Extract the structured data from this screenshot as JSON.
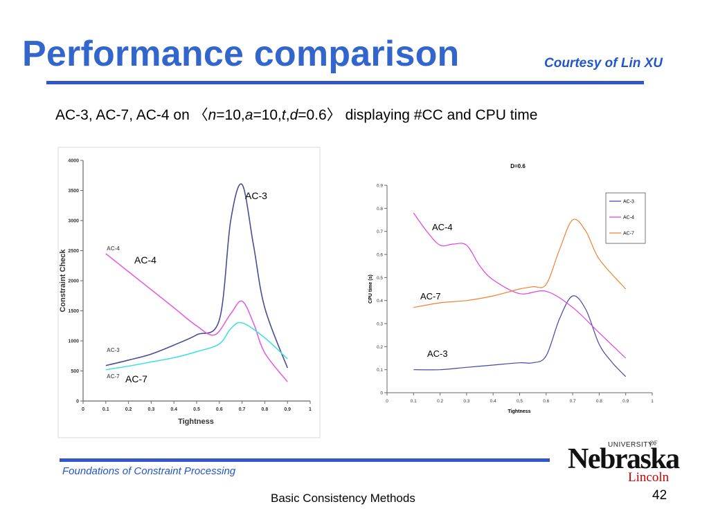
{
  "slide": {
    "title": "Performance comparison",
    "courtesy": "Courtesy of Lin XU",
    "subtitle": {
      "prefix": "AC-3, AC-7, AC-4 on ",
      "open": "〈",
      "n": "n",
      "n_val": "=10,",
      "a": "a",
      "a_val": "=10,",
      "t": "t",
      "comma": ",",
      "d": "d",
      "d_val": "=0.6",
      "close": "〉",
      "suffix": " displaying #CC and CPU time"
    },
    "footer_left": "Foundations of Constraint Processing",
    "footer_center": "Basic Consistency Methods",
    "page_number": "42",
    "logo": {
      "university": "UNIVERSITY",
      "of": "OF",
      "name": "Nebraska",
      "campus": "Lincoln"
    }
  },
  "chart_data": [
    {
      "type": "line",
      "title": "",
      "xlabel": "Tightness",
      "ylabel": "Constraint Check",
      "xlim": [
        0,
        1
      ],
      "ylim": [
        0,
        4000
      ],
      "xticks": [
        0,
        0.1,
        0.2,
        0.3,
        0.4,
        0.5,
        0.6,
        0.7,
        0.8,
        0.9,
        1
      ],
      "xtick_labels": [
        "0",
        "0.1",
        "0.2",
        "0.3",
        "0.4",
        "0.5",
        "0.6",
        "0.7",
        "0.8",
        "0.9",
        "1"
      ],
      "yticks": [
        0,
        500,
        1000,
        1500,
        2000,
        2500,
        3000,
        3500,
        4000
      ],
      "ytick_labels": [
        "0",
        "500",
        "1000",
        "1500",
        "2000",
        "2500",
        "3000",
        "3500",
        "4000"
      ],
      "grid": false,
      "legend": "inline labels at left end of series",
      "series": [
        {
          "name": "AC-3",
          "color": "#4b4b96",
          "x": [
            0.1,
            0.2,
            0.3,
            0.4,
            0.5,
            0.6,
            0.65,
            0.7,
            0.75,
            0.8,
            0.9
          ],
          "y": [
            590,
            680,
            780,
            930,
            1100,
            1350,
            3000,
            3600,
            2600,
            1550,
            550
          ]
        },
        {
          "name": "AC-4",
          "color": "#e060e0",
          "x": [
            0.1,
            0.2,
            0.3,
            0.4,
            0.5,
            0.58,
            0.65,
            0.7,
            0.75,
            0.8,
            0.9
          ],
          "y": [
            2450,
            2150,
            1850,
            1550,
            1250,
            1100,
            1450,
            1660,
            1300,
            800,
            320
          ]
        },
        {
          "name": "AC-7",
          "color": "#44e0e0",
          "x": [
            0.1,
            0.2,
            0.3,
            0.4,
            0.5,
            0.6,
            0.65,
            0.7,
            0.8,
            0.9
          ],
          "y": [
            520,
            580,
            650,
            720,
            820,
            950,
            1200,
            1300,
            1050,
            700
          ]
        }
      ],
      "annotations": [
        "AC-3",
        "AC-4",
        "AC-7"
      ],
      "legend_entries": [
        "AC-4",
        "AC-3",
        "AC-7"
      ]
    },
    {
      "type": "line",
      "title": "D=0.6",
      "xlabel": "Tightness",
      "ylabel": "CPU time (s)",
      "xlim": [
        0,
        1
      ],
      "ylim": [
        0,
        0.9
      ],
      "xticks": [
        0,
        0.1,
        0.2,
        0.3,
        0.4,
        0.5,
        0.6,
        0.7,
        0.8,
        0.9,
        1
      ],
      "xtick_labels": [
        "0",
        "0.1",
        "0.2",
        "0.3",
        "0.4",
        "0.5",
        "0.6",
        "0.7",
        "0.8",
        "0.9",
        "1"
      ],
      "yticks": [
        0,
        0.1,
        0.2,
        0.3,
        0.4,
        0.5,
        0.6,
        0.7,
        0.8,
        0.9
      ],
      "ytick_labels": [
        "0",
        "0.1",
        "0.2",
        "0.3",
        "0.4",
        "0.5",
        "0.6",
        "0.7",
        "0.8",
        "0.9"
      ],
      "grid": false,
      "legend": "top-right",
      "series": [
        {
          "name": "AC-3",
          "color": "#4444aa",
          "x": [
            0.1,
            0.2,
            0.3,
            0.4,
            0.5,
            0.55,
            0.6,
            0.65,
            0.7,
            0.75,
            0.8,
            0.85,
            0.9
          ],
          "y": [
            0.1,
            0.1,
            0.11,
            0.12,
            0.13,
            0.13,
            0.16,
            0.32,
            0.42,
            0.36,
            0.21,
            0.13,
            0.07
          ]
        },
        {
          "name": "AC-4",
          "color": "#e040e0",
          "x": [
            0.1,
            0.15,
            0.2,
            0.25,
            0.3,
            0.35,
            0.4,
            0.5,
            0.6,
            0.7,
            0.8,
            0.9
          ],
          "y": [
            0.78,
            0.7,
            0.64,
            0.645,
            0.64,
            0.55,
            0.49,
            0.43,
            0.44,
            0.37,
            0.26,
            0.15
          ]
        },
        {
          "name": "AC-7",
          "color": "#f08030",
          "x": [
            0.1,
            0.2,
            0.3,
            0.4,
            0.5,
            0.55,
            0.6,
            0.65,
            0.7,
            0.75,
            0.8,
            0.9
          ],
          "y": [
            0.37,
            0.39,
            0.4,
            0.42,
            0.45,
            0.46,
            0.47,
            0.62,
            0.75,
            0.7,
            0.58,
            0.45
          ]
        }
      ],
      "annotations": [
        "AC-4",
        "AC-7",
        "AC-3"
      ]
    }
  ]
}
